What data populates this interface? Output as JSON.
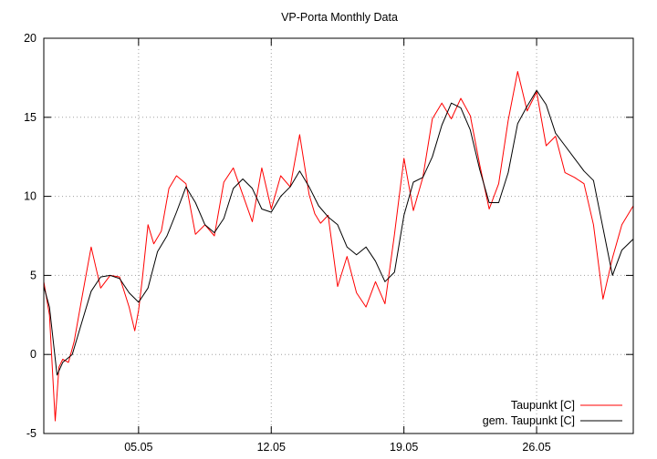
{
  "chart_data": {
    "type": "line",
    "title": "VP-Porta Monthly Data",
    "xlabel": "",
    "ylabel": "",
    "xlim": [
      0,
      31.1
    ],
    "ylim": [
      -5,
      20
    ],
    "yticks": [
      -5,
      0,
      5,
      10,
      15,
      20
    ],
    "xticks": [
      {
        "label": "05.05",
        "x": 5
      },
      {
        "label": "12.05",
        "x": 12
      },
      {
        "label": "19.05",
        "x": 19
      },
      {
        "label": "26.05",
        "x": 26
      }
    ],
    "grid": true,
    "legend_position": "bottom-right",
    "series": [
      {
        "name": "Taupunkt [C]",
        "color": "#ff0000",
        "x": [
          0,
          0.3,
          0.6,
          0.8,
          1.0,
          1.3,
          1.6,
          2.0,
          2.5,
          3.0,
          3.5,
          4.0,
          4.5,
          4.8,
          5.0,
          5.2,
          5.5,
          5.8,
          6.2,
          6.6,
          7.0,
          7.5,
          8.0,
          8.5,
          9.0,
          9.5,
          10.0,
          10.5,
          11.0,
          11.5,
          12.0,
          12.5,
          13.0,
          13.5,
          14.0,
          14.3,
          14.6,
          15.0,
          15.5,
          16.0,
          16.5,
          17.0,
          17.5,
          18.0,
          18.5,
          19.0,
          19.5,
          20.0,
          20.5,
          21.0,
          21.5,
          22.0,
          22.5,
          23.0,
          23.5,
          24.0,
          24.5,
          25.0,
          25.5,
          26.0,
          26.5,
          27.0,
          27.5,
          28.0,
          28.5,
          29.0,
          29.5,
          30.0,
          30.5,
          31.1
        ],
        "y": [
          4.6,
          2.5,
          -4.2,
          -0.8,
          -0.3,
          -0.5,
          0.8,
          3.5,
          6.8,
          4.2,
          5.0,
          4.9,
          3.0,
          1.5,
          2.8,
          4.8,
          8.2,
          7.0,
          7.8,
          10.5,
          11.3,
          10.8,
          7.6,
          8.2,
          7.5,
          10.9,
          11.8,
          10.1,
          8.4,
          11.8,
          9.2,
          11.3,
          10.6,
          13.9,
          10.1,
          8.9,
          8.3,
          8.8,
          4.3,
          6.2,
          3.9,
          3.0,
          4.6,
          3.2,
          7.6,
          12.4,
          9.1,
          11.2,
          14.9,
          15.9,
          14.9,
          16.2,
          15.1,
          12.0,
          9.2,
          10.8,
          14.8,
          17.9,
          15.4,
          16.6,
          13.2,
          13.8,
          11.5,
          11.2,
          10.8,
          8.2,
          3.5,
          6.1,
          8.2,
          9.4
        ]
      },
      {
        "name": "gem. Taupunkt [C]",
        "color": "#000000",
        "x": [
          0,
          0.3,
          0.7,
          1.0,
          1.5,
          2.0,
          2.5,
          3.0,
          3.5,
          4.0,
          4.5,
          5.0,
          5.5,
          6.0,
          6.5,
          7.0,
          7.5,
          8.0,
          8.5,
          9.0,
          9.5,
          10.0,
          10.5,
          11.0,
          11.5,
          12.0,
          12.5,
          13.0,
          13.5,
          14.0,
          14.5,
          15.0,
          15.5,
          16.0,
          16.5,
          17.0,
          17.5,
          18.0,
          18.5,
          19.0,
          19.5,
          20.0,
          20.5,
          21.0,
          21.5,
          22.0,
          22.5,
          23.0,
          23.5,
          24.0,
          24.5,
          25.0,
          25.5,
          26.0,
          26.5,
          27.0,
          27.5,
          28.0,
          28.5,
          29.0,
          29.5,
          30.0,
          30.5,
          31.1
        ],
        "y": [
          4.3,
          3.0,
          -1.3,
          -0.5,
          0.0,
          2.0,
          4.0,
          4.9,
          5.0,
          4.8,
          3.9,
          3.3,
          4.2,
          6.5,
          7.5,
          9.0,
          10.6,
          9.6,
          8.2,
          7.7,
          8.6,
          10.5,
          11.1,
          10.5,
          9.2,
          9.0,
          10.0,
          10.6,
          11.6,
          10.6,
          9.4,
          8.7,
          8.2,
          6.8,
          6.3,
          6.8,
          5.9,
          4.6,
          5.2,
          8.8,
          10.9,
          11.2,
          12.5,
          14.5,
          15.9,
          15.6,
          14.2,
          11.7,
          9.6,
          9.6,
          11.5,
          14.6,
          15.7,
          16.7,
          15.8,
          14.0,
          13.2,
          12.4,
          11.6,
          11.0,
          8.0,
          5.0,
          6.6,
          7.3
        ]
      }
    ]
  }
}
